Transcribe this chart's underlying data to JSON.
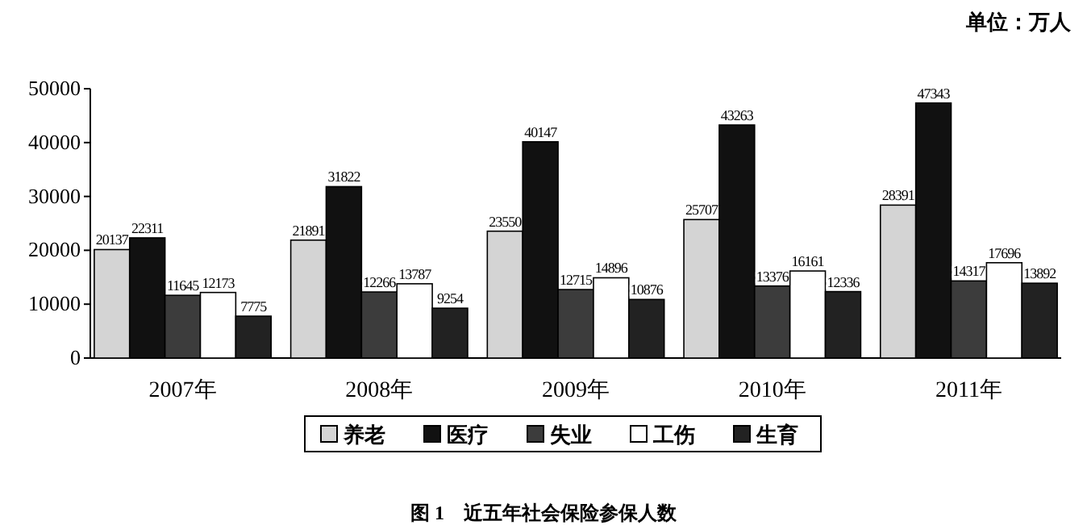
{
  "chart_data": {
    "type": "bar",
    "title": "图 1　近五年社会保险参保人数",
    "annotations": [
      "单位：万人"
    ],
    "categories": [
      "2007年",
      "2008年",
      "2009年",
      "2010年",
      "2011年"
    ],
    "series": [
      {
        "name": "养老",
        "color": "#d4d4d4",
        "values": [
          20137,
          21891,
          23550,
          25707,
          28391
        ]
      },
      {
        "name": "医疗",
        "color": "#111111",
        "values": [
          22311,
          31822,
          40147,
          43263,
          47343
        ]
      },
      {
        "name": "失业",
        "color": "#3c3c3c",
        "values": [
          11645,
          12266,
          12715,
          13376,
          14317
        ]
      },
      {
        "name": "工伤",
        "color": "#ffffff",
        "values": [
          12173,
          13787,
          14896,
          16161,
          17696
        ]
      },
      {
        "name": "生育",
        "color": "#222222",
        "values": [
          7775,
          9254,
          10876,
          12336,
          13892
        ]
      }
    ],
    "ylim": [
      0,
      50000
    ],
    "yticks": [
      0,
      10000,
      20000,
      30000,
      40000,
      50000
    ],
    "grid": false,
    "legend": "bottom",
    "data_labels": true
  }
}
